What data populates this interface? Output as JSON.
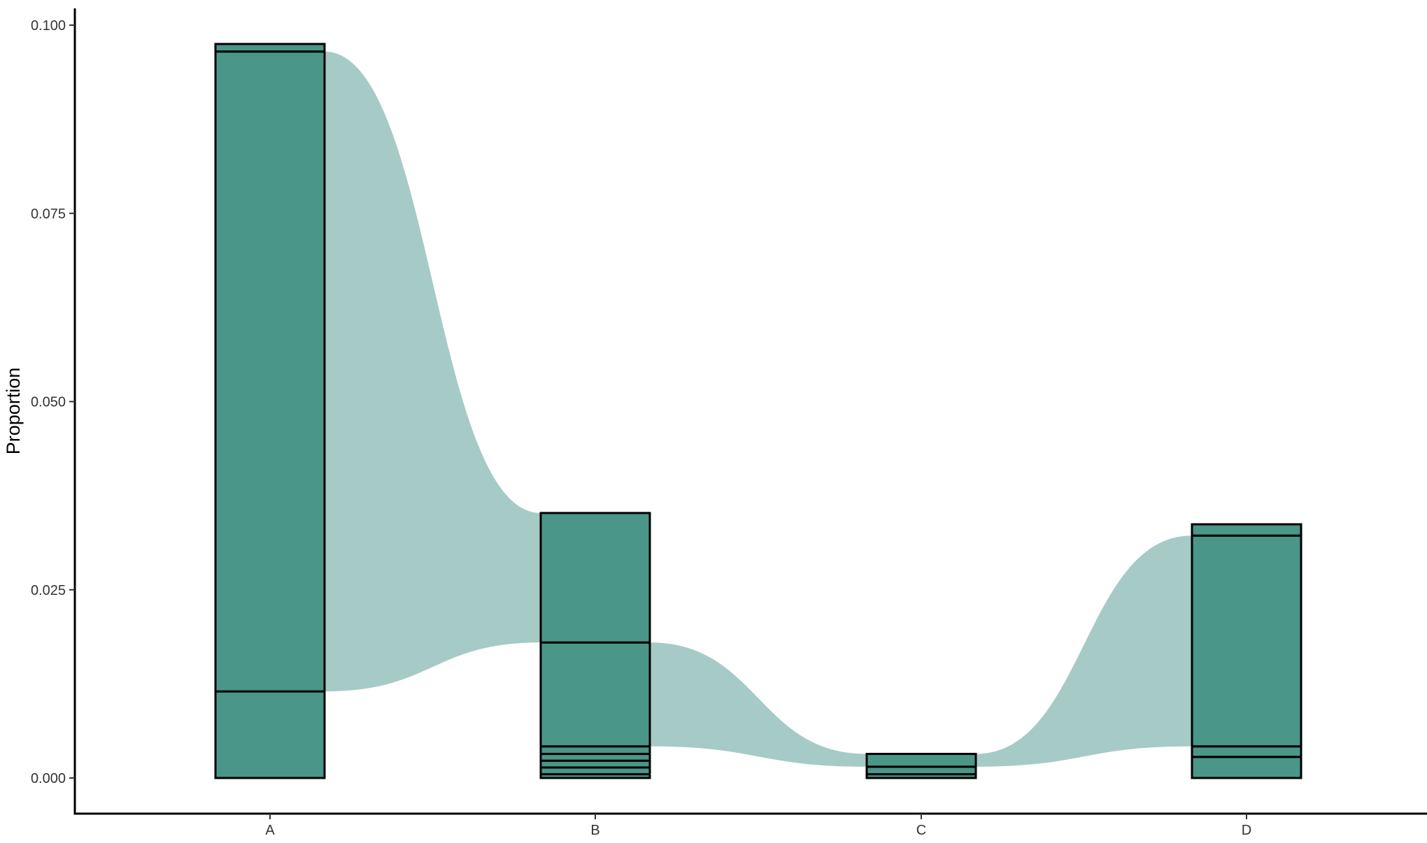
{
  "chart_data": {
    "type": "alluvial",
    "xlabel": "",
    "ylabel": "Proportion",
    "categories": [
      "A",
      "B",
      "C",
      "D"
    ],
    "ylim": [
      0,
      0.1
    ],
    "yticks": [
      "0.000",
      "0.025",
      "0.050",
      "0.075",
      "0.100"
    ],
    "ytick_values": [
      0,
      0.025,
      0.05,
      0.075,
      0.1
    ],
    "grid": false,
    "legend": "none",
    "stack_boundaries": {
      "A": [
        0,
        0.0115,
        0.0965,
        0.0975
      ],
      "B": [
        0,
        0.0005,
        0.0014,
        0.0023,
        0.0032,
        0.0042,
        0.018,
        0.0352
      ],
      "C": [
        0,
        0.0005,
        0.0015,
        0.0032
      ],
      "D": [
        0,
        0.0028,
        0.0042,
        0.0322,
        0.0337
      ]
    },
    "flows": [
      {
        "from": "A",
        "to": "B",
        "from_range": [
          0.0115,
          0.0965
        ],
        "to_range": [
          0.018,
          0.0352
        ]
      },
      {
        "from": "B",
        "to": "C",
        "from_range": [
          0.0042,
          0.018
        ],
        "to_range": [
          0.0015,
          0.0032
        ]
      },
      {
        "from": "C",
        "to": "D",
        "from_range": [
          0.0015,
          0.0032
        ],
        "to_range": [
          0.0042,
          0.0322
        ]
      }
    ],
    "colors": {
      "stratum": "#4a9689",
      "flow": "#a6cbc6",
      "outline": "#000000"
    }
  }
}
